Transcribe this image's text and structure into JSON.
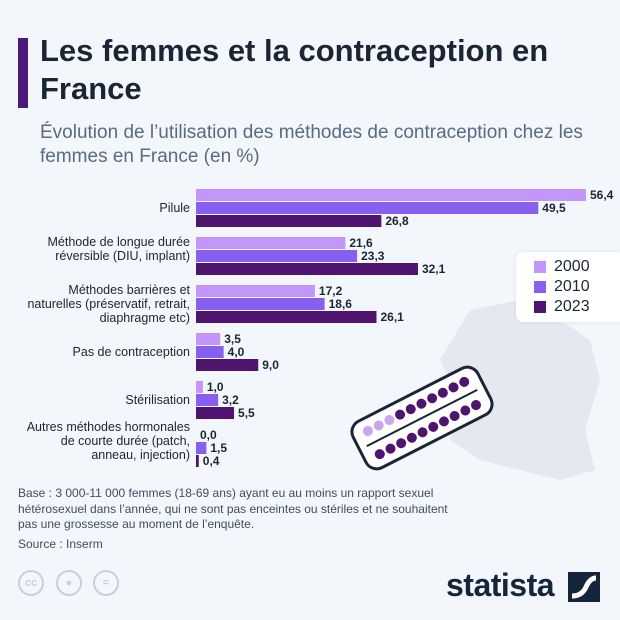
{
  "title": "Les femmes et la contraception en France",
  "subtitle": "Évolution de l’utilisation des méthodes de contraception chez les femmes en France (en %)",
  "note": "Base : 3 000-11 000 femmes (18-69 ans) ayant eu au moins un rapport sexuel hétérosexuel dans l’année, qui ne sont pas enceintes ou stériles et ne souhaitent pas une grossesse au moment de l’enquête.",
  "source": "Source : Inserm",
  "logo": "statista",
  "license_icons": [
    "cc-icon",
    "attribution-icon",
    "no-derivatives-icon"
  ],
  "license_labels": [
    "cc",
    "",
    ""
  ],
  "chart_data": {
    "type": "bar",
    "orientation": "horizontal",
    "categories": [
      "Pilule",
      "Méthode de longue durée réversible (DIU, implant)",
      "Méthodes barrières et naturelles (préservatif, retrait, diaphragme etc)",
      "Pas de contraception",
      "Stérilisation",
      "Autres méthodes hormonales de courte durée (patch, anneau, injection)"
    ],
    "series": [
      {
        "name": "2000",
        "color": "#c495fb",
        "values": [
          56.4,
          21.6,
          17.2,
          3.5,
          1.0,
          0.0
        ],
        "labels": [
          "56,4",
          "21,6",
          "17,2",
          "3,5",
          "1,0",
          "0,0"
        ]
      },
      {
        "name": "2010",
        "color": "#8760f0",
        "values": [
          49.5,
          23.3,
          18.6,
          4.0,
          3.2,
          1.5
        ],
        "labels": [
          "49,5",
          "23,3",
          "18,6",
          "4,0",
          "3,2",
          "1,5"
        ]
      },
      {
        "name": "2023",
        "color": "#4e1470",
        "values": [
          26.8,
          32.1,
          26.1,
          9.0,
          5.5,
          0.4
        ],
        "labels": [
          "26,8",
          "32,1",
          "26,1",
          "9,0",
          "5,5",
          "0,4"
        ]
      }
    ],
    "xlim": [
      0,
      56.4
    ],
    "grid": false,
    "legend": "right"
  }
}
